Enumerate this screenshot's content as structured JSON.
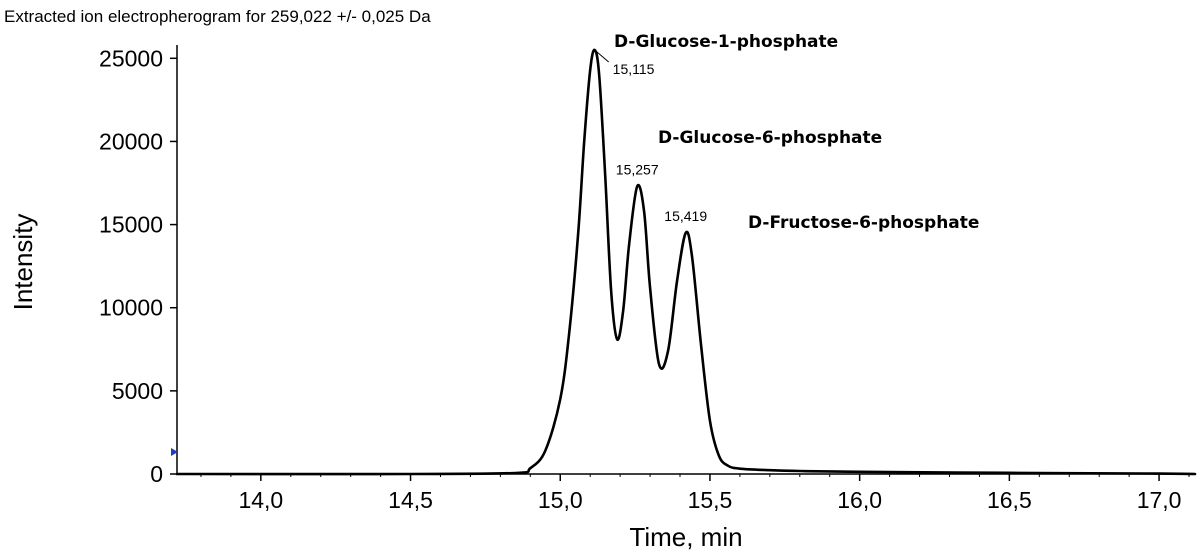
{
  "chart_data": {
    "type": "line",
    "title": "Extracted ion electropherogram for 259,022 +/- 0,025 Da",
    "xlabel": "Time, min",
    "ylabel": "Intensity",
    "xlim": [
      13.72,
      17.12
    ],
    "ylim": [
      0,
      25800
    ],
    "x_ticks": [
      {
        "value": 14.0,
        "label": "14,0"
      },
      {
        "value": 14.5,
        "label": "14,5"
      },
      {
        "value": 15.0,
        "label": "15,0"
      },
      {
        "value": 15.5,
        "label": "15,5"
      },
      {
        "value": 16.0,
        "label": "16,0"
      },
      {
        "value": 16.5,
        "label": "16,5"
      },
      {
        "value": 17.0,
        "label": "17,0"
      }
    ],
    "y_ticks": [
      {
        "value": 0,
        "label": "0"
      },
      {
        "value": 5000,
        "label": "5000"
      },
      {
        "value": 10000,
        "label": "10000"
      },
      {
        "value": 15000,
        "label": "15000"
      },
      {
        "value": 20000,
        "label": "20000"
      },
      {
        "value": 25000,
        "label": "25000"
      }
    ],
    "grid": false,
    "series": [
      {
        "color": "#000000",
        "x": [
          13.72,
          14.5,
          14.85,
          14.9,
          14.95,
          15.0,
          15.03,
          15.06,
          15.08,
          15.1,
          15.115,
          15.13,
          15.15,
          15.17,
          15.19,
          15.21,
          15.23,
          15.257,
          15.28,
          15.3,
          15.33,
          15.36,
          15.39,
          15.419,
          15.44,
          15.47,
          15.5,
          15.53,
          15.56,
          15.6,
          15.7,
          15.8,
          16.0,
          16.5,
          17.0,
          17.12
        ],
        "y": [
          0,
          0,
          60,
          350,
          1400,
          4500,
          8500,
          14500,
          20000,
          24300,
          25500,
          24000,
          18000,
          11000,
          8100,
          9800,
          13800,
          17300,
          15800,
          11200,
          6600,
          7400,
          11600,
          14500,
          13100,
          7800,
          3200,
          1100,
          500,
          320,
          230,
          180,
          130,
          70,
          25,
          0
        ]
      }
    ],
    "peak_labels": [
      {
        "x": 15.115,
        "y": 25500,
        "label": "15,115"
      },
      {
        "x": 15.257,
        "y": 17300,
        "label": "15,257"
      },
      {
        "x": 15.419,
        "y": 14500,
        "label": "15,419"
      }
    ],
    "annotations": [
      {
        "text": "D-Glucose-1-phosphate",
        "x": 15.115,
        "y": 25500
      },
      {
        "text": "D-Glucose-6-phosphate",
        "x": 15.257,
        "y": 17300
      },
      {
        "text": "D-Fructose-6-phosphate",
        "x": 15.419,
        "y": 14500
      }
    ]
  }
}
